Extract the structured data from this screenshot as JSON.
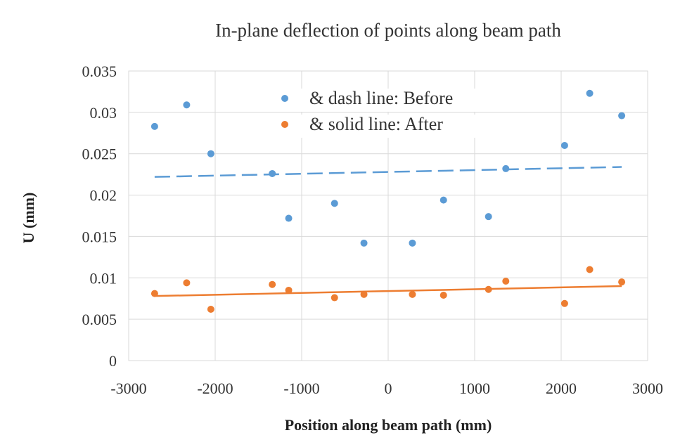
{
  "chart_data": {
    "type": "scatter",
    "title": "In-plane deflection of points along beam path",
    "xlabel": "Position along beam path (mm)",
    "ylabel": "U (mm)",
    "xlim": [
      -3000,
      3000
    ],
    "ylim": [
      0,
      0.035
    ],
    "xticks": [
      -3000,
      -2000,
      -1000,
      0,
      1000,
      2000,
      3000
    ],
    "yticks": [
      0,
      0.005,
      0.01,
      0.015,
      0.02,
      0.025,
      0.03,
      0.035
    ],
    "xtick_labels": [
      "-3000",
      "-2000",
      "-1000",
      "0",
      "1000",
      "2000",
      "3000"
    ],
    "ytick_labels": [
      "0",
      "0.005",
      "0.01",
      "0.015",
      "0.02",
      "0.025",
      "0.03",
      "0.035"
    ],
    "grid": "major gridlines on both axes",
    "legend_position": "top-center",
    "series": [
      {
        "name": "& dash line: Before",
        "color": "#5b9bd5",
        "trendline": {
          "style": "dashed",
          "x": [
            -2700,
            2700
          ],
          "y": [
            0.0222,
            0.0234
          ]
        },
        "x": [
          -2700,
          -2330,
          -2050,
          -1340,
          -1150,
          -620,
          -280,
          280,
          640,
          1160,
          1360,
          2040,
          2330,
          2700
        ],
        "y": [
          0.0283,
          0.0309,
          0.025,
          0.0226,
          0.0172,
          0.019,
          0.0142,
          0.0142,
          0.0194,
          0.0174,
          0.0232,
          0.026,
          0.0323,
          0.0296
        ]
      },
      {
        "name": "& solid line: After",
        "color": "#ed7d31",
        "trendline": {
          "style": "solid",
          "x": [
            -2700,
            2700
          ],
          "y": [
            0.0078,
            0.009
          ]
        },
        "x": [
          -2700,
          -2330,
          -2050,
          -1340,
          -1150,
          -620,
          -280,
          280,
          640,
          1160,
          1360,
          2040,
          2330,
          2700
        ],
        "y": [
          0.0081,
          0.0094,
          0.0062,
          0.0092,
          0.0085,
          0.0076,
          0.008,
          0.008,
          0.0079,
          0.0086,
          0.0096,
          0.0069,
          0.011,
          0.0095
        ]
      }
    ]
  }
}
